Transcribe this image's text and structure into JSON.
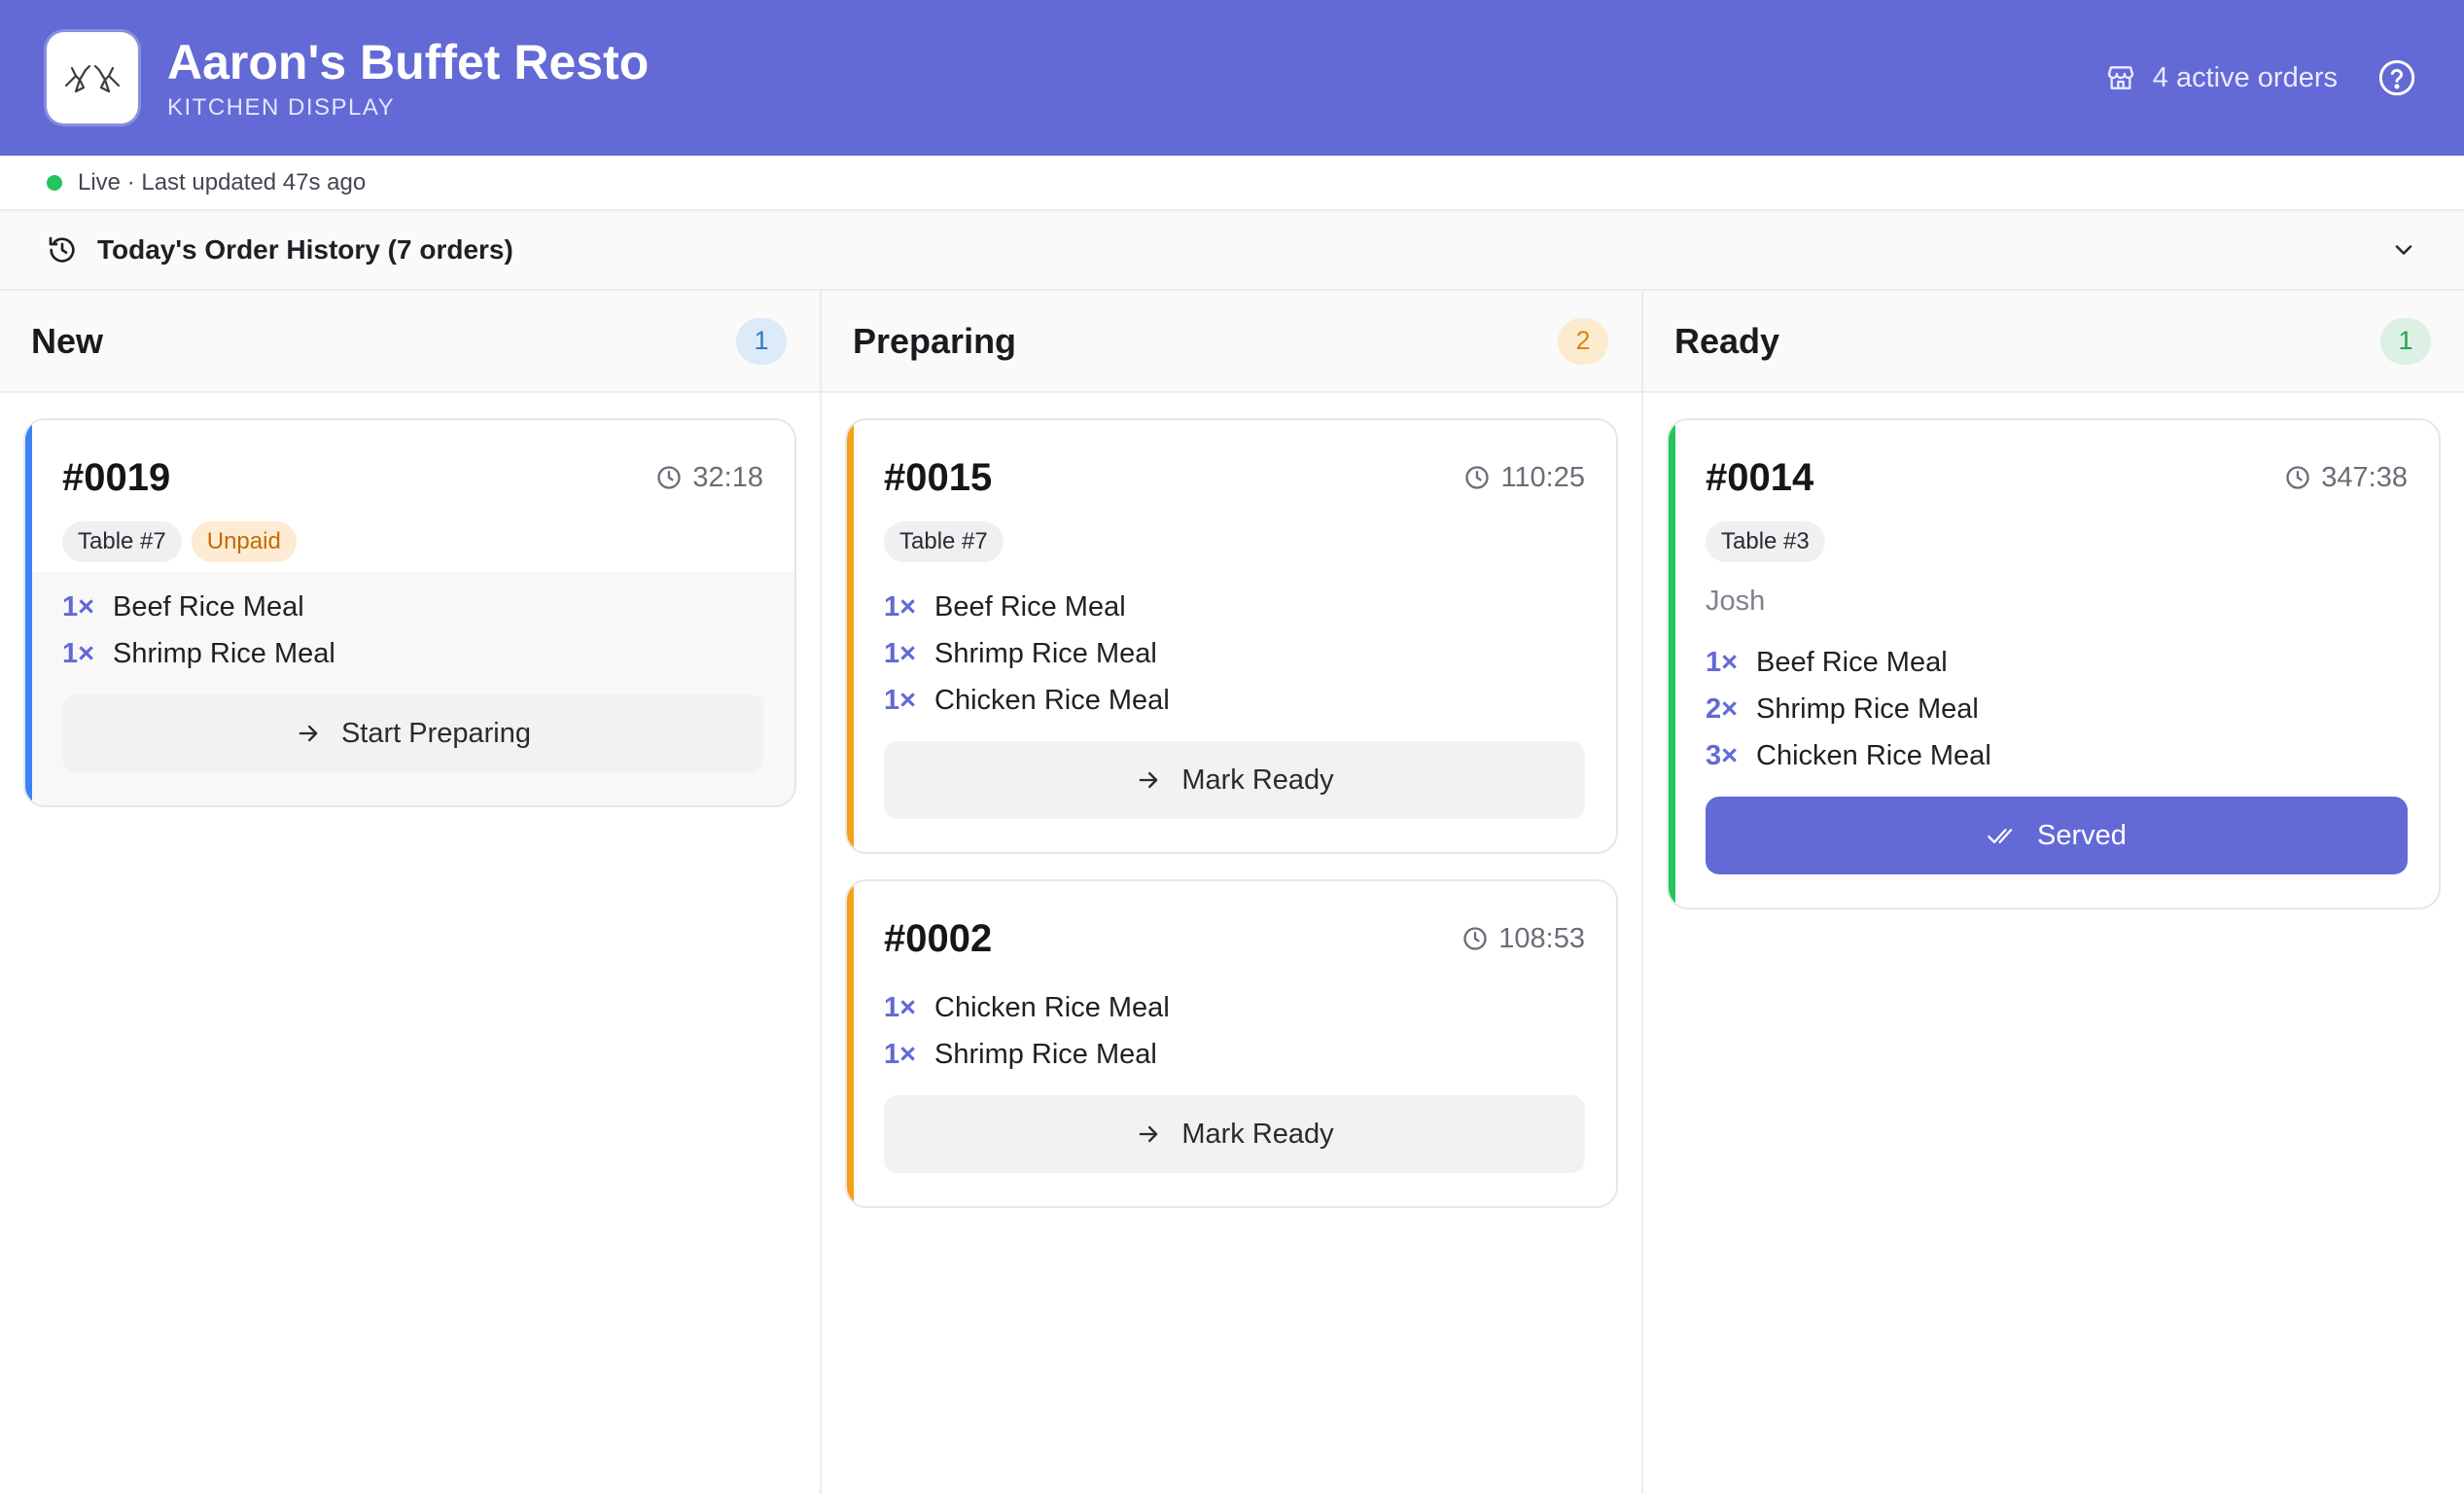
{
  "header": {
    "title": "Aaron's Buffet Resto",
    "subtitle": "KITCHEN DISPLAY",
    "active_orders": "4 active orders",
    "brand_color": "#6369d5",
    "icons": {
      "logo": "hands-logo-icon",
      "store": "store-icon",
      "help": "help-circle-icon"
    }
  },
  "status": {
    "live_text": "Live · Last updated 47s ago",
    "live_color": "#22c55e"
  },
  "history": {
    "label": "Today's Order History (7 orders)",
    "icon": "history-icon",
    "toggle_icon": "chevron-down-icon"
  },
  "columns": [
    {
      "title": "New",
      "count": "1",
      "accent": "#3b82f6",
      "orders": [
        {
          "number": "#0019",
          "elapsed": "32:18",
          "tags": [
            "Table #7",
            "Unpaid"
          ],
          "customer": "",
          "items": [
            {
              "qty": "1×",
              "name": "Beef Rice Meal"
            },
            {
              "qty": "1×",
              "name": "Shrimp Rice Meal"
            }
          ],
          "action": "Start Preparing"
        }
      ]
    },
    {
      "title": "Preparing",
      "count": "2",
      "accent": "#f3a11a",
      "orders": [
        {
          "number": "#0015",
          "elapsed": "110:25",
          "tags": [
            "Table #7"
          ],
          "customer": "",
          "items": [
            {
              "qty": "1×",
              "name": "Beef Rice Meal"
            },
            {
              "qty": "1×",
              "name": "Shrimp Rice Meal"
            },
            {
              "qty": "1×",
              "name": "Chicken Rice Meal"
            }
          ],
          "action": "Mark Ready"
        },
        {
          "number": "#0002",
          "elapsed": "108:53",
          "tags": [],
          "customer": "",
          "items": [
            {
              "qty": "1×",
              "name": "Chicken Rice Meal"
            },
            {
              "qty": "1×",
              "name": "Shrimp Rice Meal"
            }
          ],
          "action": "Mark Ready"
        }
      ]
    },
    {
      "title": "Ready",
      "count": "1",
      "accent": "#22c55e",
      "orders": [
        {
          "number": "#0014",
          "elapsed": "347:38",
          "tags": [
            "Table #3"
          ],
          "customer": "Josh",
          "items": [
            {
              "qty": "1×",
              "name": "Beef Rice Meal"
            },
            {
              "qty": "2×",
              "name": "Shrimp Rice Meal"
            },
            {
              "qty": "3×",
              "name": "Chicken Rice Meal"
            }
          ],
          "action": "Served"
        }
      ]
    }
  ]
}
